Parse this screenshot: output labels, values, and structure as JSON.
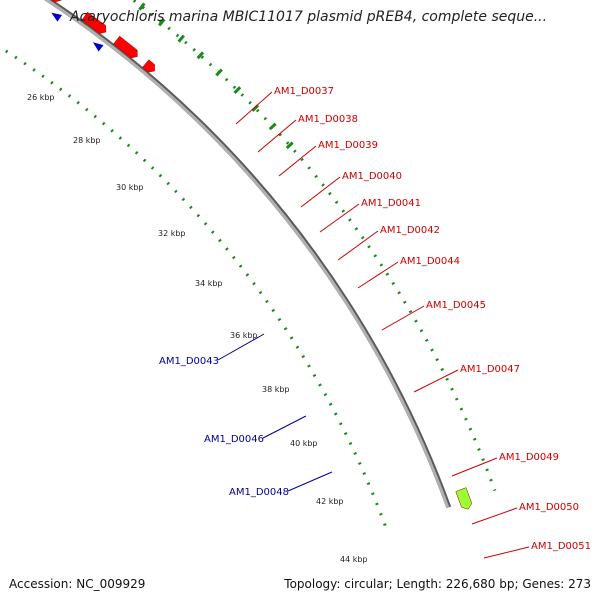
{
  "title": "Acaryochloris marina MBIC11017 plasmid pREB4, complete seque...",
  "footer": {
    "accession": "Accession: NC_009929",
    "summary": "Topology: circular; Length: 226,680 bp; Genes: 273"
  },
  "colors": {
    "backbone": "#8c8c8c",
    "forward_gene": "#ff0000",
    "reverse_gene": "#0000cc",
    "highlight_gene": "#99ff33",
    "ticks": "#1a8a1a",
    "forward_label": "#cc0000",
    "reverse_label": "#000099"
  },
  "ticks": [
    "26 kbp",
    "28 kbp",
    "30 kbp",
    "32 kbp",
    "34 kbp",
    "36 kbp",
    "38 kbp",
    "40 kbp",
    "42 kbp",
    "44 kbp"
  ],
  "genes_forward": [
    "AM1_D0037",
    "AM1_D0038",
    "AM1_D0039",
    "AM1_D0040",
    "AM1_D0041",
    "AM1_D0042",
    "AM1_D0044",
    "AM1_D0045",
    "AM1_D0047",
    "AM1_D0049",
    "AM1_D0050",
    "AM1_D0051"
  ],
  "genes_reverse": [
    "AM1_D0043",
    "AM1_D0046",
    "AM1_D0048"
  ]
}
